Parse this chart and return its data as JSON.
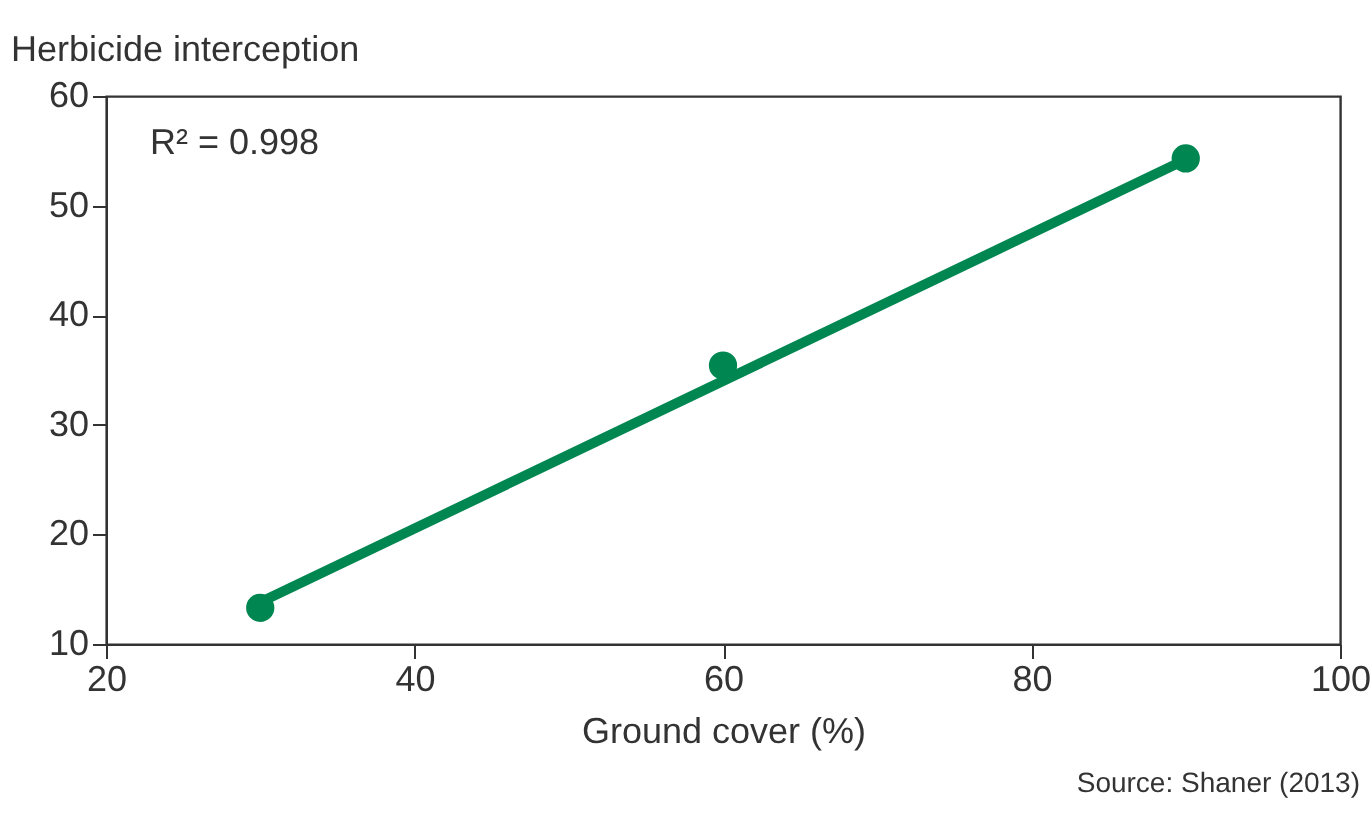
{
  "chart_data": {
    "type": "scatter",
    "ylabel": "Herbicide interception",
    "xlabel": "Ground cover (%)",
    "xlim": [
      20,
      100
    ],
    "xticks": [
      20,
      40,
      60,
      80,
      100
    ],
    "ylim": [
      10,
      60
    ],
    "yticks": [
      10,
      20,
      30,
      40,
      50,
      60
    ],
    "grid": false,
    "marker": "circle",
    "series": [
      {
        "color": "#008751",
        "x": [
          30,
          60,
          90
        ],
        "values": [
          13.3,
          35.4,
          54.3
        ]
      },
      {
        "type": "line",
        "color": "#008751",
        "x": [
          30,
          90
        ],
        "values": [
          13.8,
          54.2
        ],
        "line_style": "solid",
        "marker": "none"
      }
    ],
    "annotations": [
      "R² = 0.998",
      "Source: Shaner (2013)"
    ]
  }
}
